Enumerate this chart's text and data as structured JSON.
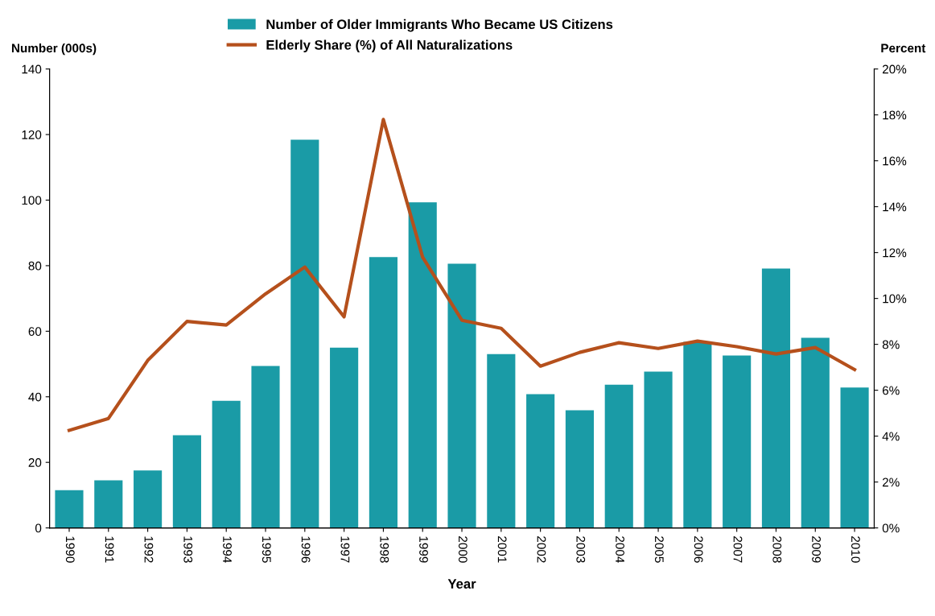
{
  "chart_data": {
    "type": "bar",
    "categories": [
      "1990",
      "1991",
      "1992",
      "1993",
      "1994",
      "1995",
      "1996",
      "1997",
      "1998",
      "1999",
      "2000",
      "2001",
      "2002",
      "2003",
      "2004",
      "2005",
      "2006",
      "2007",
      "2008",
      "2009",
      "2010"
    ],
    "series": [
      {
        "name": "Number of Older Immigrants Who Became US Citizens",
        "color": "#1a9ba6",
        "values": [
          11.5,
          14.5,
          17.5,
          28.3,
          38.8,
          49.4,
          118.4,
          55,
          82.6,
          99.3,
          80.6,
          53,
          40.8,
          35.9,
          43.7,
          47.7,
          56.8,
          52.6,
          79.1,
          58,
          42.8
        ]
      },
      {
        "name": "Elderly Share (%) of All Naturalizations",
        "type": "line",
        "axis": "y2",
        "color": "#b5501c",
        "values": [
          4.25,
          4.77,
          7.3,
          9.0,
          8.84,
          10.2,
          11.37,
          9.2,
          17.8,
          11.8,
          9.05,
          8.7,
          7.05,
          7.65,
          8.07,
          7.82,
          8.14,
          7.9,
          7.58,
          7.86,
          6.9
        ]
      }
    ],
    "xlabel": "Year",
    "ylabel": "Number (000s)",
    "y2label": "Percent",
    "ylim": [
      0,
      140
    ],
    "yticks": [
      0,
      20,
      40,
      60,
      80,
      100,
      120,
      140
    ],
    "y2lim": [
      0,
      20
    ],
    "y2ticks": [
      {
        "value": 0,
        "label": "0%"
      },
      {
        "value": 2,
        "label": "2%"
      },
      {
        "value": 4,
        "label": "4%"
      },
      {
        "value": 6,
        "label": "6%"
      },
      {
        "value": 8,
        "label": "8%"
      },
      {
        "value": 10,
        "label": "10%"
      },
      {
        "value": 12,
        "label": "12%"
      },
      {
        "value": 14,
        "label": "14%"
      },
      {
        "value": 16,
        "label": "16%"
      },
      {
        "value": 18,
        "label": "18%"
      },
      {
        "value": 20,
        "label": "20%"
      }
    ],
    "legend": "top",
    "grid": false,
    "marker": "none",
    "line_style": "solid"
  }
}
